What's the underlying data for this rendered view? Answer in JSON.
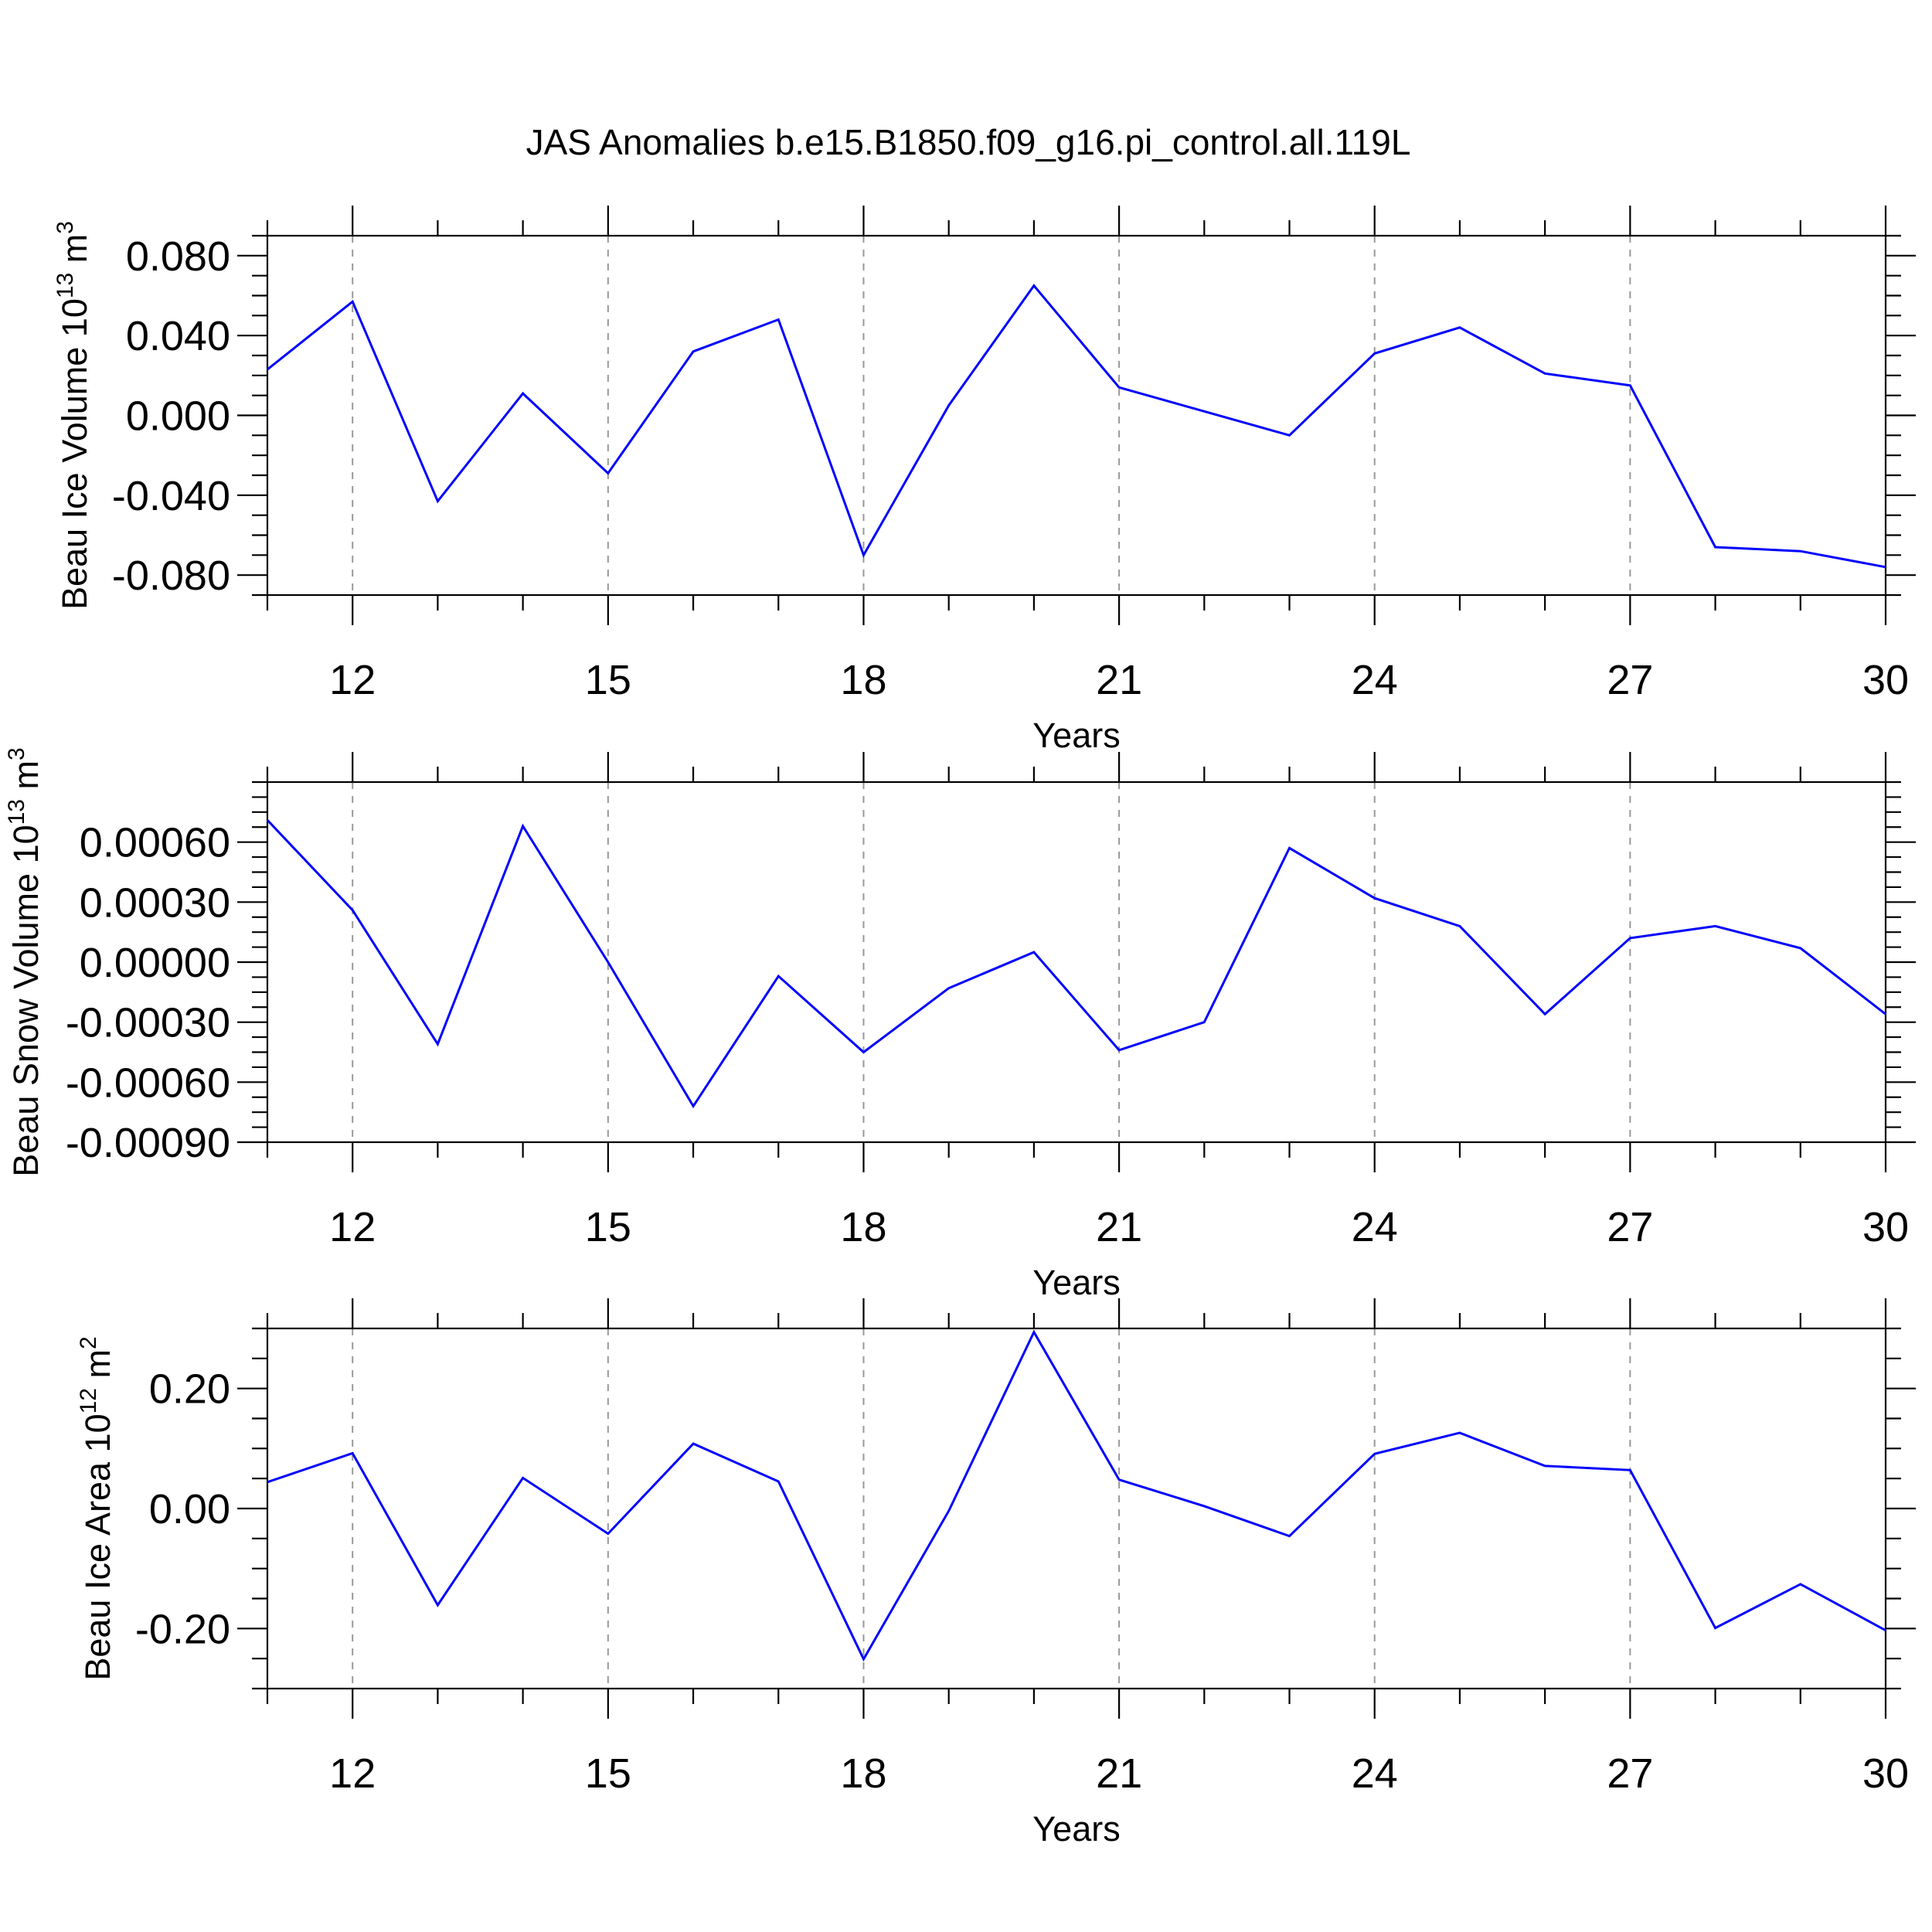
{
  "title": "JAS Anomalies b.e15.B1850.f09_g16.pi_control.all.119L",
  "colors": {
    "line": "#0000ff",
    "frame": "#000000",
    "grid": "#999999"
  },
  "chart_data": [
    {
      "type": "line",
      "xlabel": "Years",
      "ylabel": {
        "main": "Beau Ice Volume 10",
        "sup1": "13",
        "mid": " m",
        "sup2": "3"
      },
      "x": [
        11,
        12,
        13,
        14,
        15,
        16,
        17,
        18,
        19,
        20,
        21,
        22,
        23,
        24,
        25,
        26,
        27,
        28,
        29,
        30
      ],
      "xlim": [
        11,
        30
      ],
      "ylim": [
        -0.09,
        0.09
      ],
      "xticks": [
        "12",
        "15",
        "18",
        "21",
        "24",
        "27",
        "30"
      ],
      "yticks": [
        "0.080",
        "0.040",
        "0.000",
        "-0.040",
        "-0.080"
      ],
      "values": [
        0.023,
        0.057,
        -0.043,
        0.011,
        -0.029,
        0.032,
        0.048,
        -0.07,
        0.005,
        0.065,
        0.014,
        0.002,
        -0.01,
        0.031,
        0.044,
        0.021,
        0.015,
        -0.066,
        -0.068,
        -0.076
      ],
      "grid": "vertical dashed at major x ticks"
    },
    {
      "type": "line",
      "xlabel": "Years",
      "ylabel": {
        "main": "Beau Snow Volume 10",
        "sup1": "13",
        "mid": " m",
        "sup2": "3"
      },
      "x": [
        11,
        12,
        13,
        14,
        15,
        16,
        17,
        18,
        19,
        20,
        21,
        22,
        23,
        24,
        25,
        26,
        27,
        28,
        29,
        30
      ],
      "xlim": [
        11,
        30
      ],
      "ylim": [
        -0.0009,
        0.0009
      ],
      "xticks": [
        "12",
        "15",
        "18",
        "21",
        "24",
        "27",
        "30"
      ],
      "yticks": [
        "0.00060",
        "0.00030",
        "0.00000",
        "-0.00030",
        "-0.00060",
        "-0.00090"
      ],
      "values": [
        0.00071,
        0.00026,
        -0.00041,
        0.00068,
        0.0,
        -0.00072,
        -7e-05,
        -0.00045,
        -0.00013,
        5e-05,
        -0.00044,
        -0.0003,
        0.00057,
        0.00032,
        0.00018,
        -0.00026,
        0.00012,
        0.00018,
        7e-05,
        -0.00026
      ],
      "grid": "vertical dashed at major x ticks"
    },
    {
      "type": "line",
      "xlabel": "Years",
      "ylabel": {
        "main": "Beau Ice Area 10",
        "sup1": "12",
        "mid": " m",
        "sup2": "2"
      },
      "x": [
        11,
        12,
        13,
        14,
        15,
        16,
        17,
        18,
        19,
        20,
        21,
        22,
        23,
        24,
        25,
        26,
        27,
        28,
        29,
        30
      ],
      "xlim": [
        11,
        30
      ],
      "ylim": [
        -0.3,
        0.3
      ],
      "xticks": [
        "12",
        "15",
        "18",
        "21",
        "24",
        "27",
        "30"
      ],
      "yticks": [
        "0.20",
        "0.00",
        "-0.20"
      ],
      "values": [
        0.044,
        0.092,
        -0.161,
        0.051,
        -0.042,
        0.108,
        0.045,
        -0.251,
        -0.004,
        0.294,
        0.048,
        0.004,
        -0.046,
        0.091,
        0.126,
        0.071,
        0.064,
        -0.199,
        -0.126,
        -0.203
      ],
      "grid": "vertical dashed at major x ticks"
    }
  ]
}
